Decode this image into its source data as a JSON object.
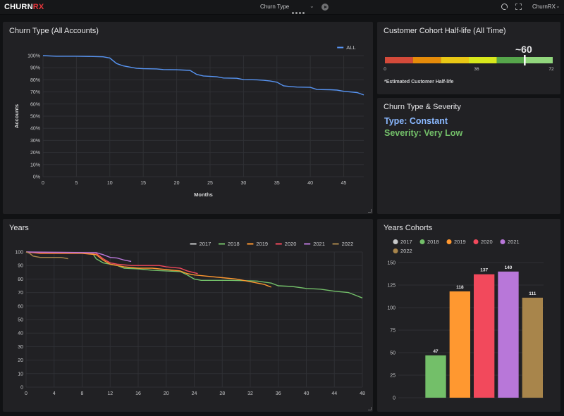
{
  "topbar": {
    "logo_main": "CHURN",
    "logo_accent": "RX",
    "dashboard_title": "Churn Type",
    "user": "ChurnRX"
  },
  "panels": {
    "churn_type_all": "Churn Type (All Accounts)",
    "half_life": "Customer Cohort Half-life (All Time)",
    "type_severity": "Churn Type & Severity",
    "years": "Years",
    "years_cohorts": "Years Cohorts"
  },
  "half_life": {
    "value_label": "~60",
    "value": 60,
    "min": 0,
    "max": 72,
    "min_label": "0",
    "mid_label": "36",
    "max_label": "72",
    "footnote": "*Estimated Customer Half-life",
    "segments": [
      "#d44a3a",
      "#e58b0a",
      "#e9c715",
      "#d8e81c",
      "#56a64b",
      "#91d67d"
    ]
  },
  "severity": {
    "type_text": "Type: Constant",
    "severity_text": "Severity: Very Low",
    "type_color": "#8ab8ff",
    "severity_color": "#73bf69"
  },
  "chart_data": [
    {
      "id": "churn_all",
      "type": "line",
      "title": "Churn Type (All Accounts)",
      "xlabel": "Months",
      "ylabel": "Accounts",
      "xlim": [
        0,
        48
      ],
      "ylim": [
        0,
        100
      ],
      "x_ticks": [
        0,
        5,
        10,
        15,
        20,
        25,
        30,
        35,
        40,
        45
      ],
      "y_ticks": [
        0,
        10,
        20,
        30,
        40,
        50,
        60,
        70,
        80,
        90,
        100
      ],
      "y_tick_suffix": "%",
      "legend": "top-right",
      "series": [
        {
          "name": "ALL",
          "color": "#5794f2",
          "points": [
            [
              0,
              100
            ],
            [
              2,
              99.5
            ],
            [
              5,
              99.5
            ],
            [
              8,
              99.2
            ],
            [
              9,
              99
            ],
            [
              10,
              98
            ],
            [
              11,
              93.5
            ],
            [
              12,
              91.5
            ],
            [
              14,
              89.5
            ],
            [
              15,
              89.2
            ],
            [
              17,
              89
            ],
            [
              18,
              88.5
            ],
            [
              20,
              88.3
            ],
            [
              22,
              87.8
            ],
            [
              23,
              84.5
            ],
            [
              24,
              83.2
            ],
            [
              26,
              82.5
            ],
            [
              27,
              81.5
            ],
            [
              29,
              81.3
            ],
            [
              30,
              80.2
            ],
            [
              32,
              80
            ],
            [
              33,
              79.6
            ],
            [
              34,
              79
            ],
            [
              35,
              78
            ],
            [
              36,
              75
            ],
            [
              37,
              74.5
            ],
            [
              38,
              74
            ],
            [
              40,
              73.8
            ],
            [
              41,
              72
            ],
            [
              43,
              71.8
            ],
            [
              44,
              71.5
            ],
            [
              45,
              70.5
            ],
            [
              47,
              69.5
            ],
            [
              48,
              67.5
            ]
          ]
        }
      ]
    },
    {
      "id": "years",
      "type": "line",
      "title": "Years",
      "xlim": [
        0,
        48
      ],
      "ylim": [
        0,
        100
      ],
      "x_ticks": [
        0,
        4,
        8,
        12,
        16,
        20,
        24,
        28,
        32,
        36,
        40,
        44,
        48
      ],
      "y_ticks": [
        0,
        10,
        20,
        30,
        40,
        50,
        60,
        70,
        80,
        90,
        100
      ],
      "legend": "top-right",
      "series": [
        {
          "name": "2017",
          "color": "#c8c9ca",
          "points": [
            [
              0,
              100
            ]
          ]
        },
        {
          "name": "2018",
          "color": "#73bf69",
          "points": [
            [
              0,
              100
            ],
            [
              4,
              99.5
            ],
            [
              8,
              99.5
            ],
            [
              9.5,
              99
            ],
            [
              10,
              95
            ],
            [
              11,
              92
            ],
            [
              12,
              91
            ],
            [
              13,
              90
            ],
            [
              14,
              88
            ],
            [
              16,
              87.5
            ],
            [
              18,
              86.5
            ],
            [
              20,
              86
            ],
            [
              22,
              85.5
            ],
            [
              23,
              83
            ],
            [
              24,
              80
            ],
            [
              25,
              79
            ],
            [
              27,
              79
            ],
            [
              29,
              79
            ],
            [
              31,
              78.8
            ],
            [
              33,
              78.5
            ],
            [
              35,
              77
            ],
            [
              36,
              75
            ],
            [
              38,
              74.5
            ],
            [
              40,
              73
            ],
            [
              42,
              72.5
            ],
            [
              44,
              71
            ],
            [
              46,
              70
            ],
            [
              47,
              68
            ],
            [
              48,
              66
            ]
          ]
        },
        {
          "name": "2019",
          "color": "#ff9830",
          "points": [
            [
              0,
              100
            ],
            [
              2,
              99
            ],
            [
              4,
              99
            ],
            [
              8,
              99
            ],
            [
              10,
              98
            ],
            [
              11,
              94
            ],
            [
              12,
              91
            ],
            [
              14,
              89
            ],
            [
              16,
              88
            ],
            [
              18,
              88
            ],
            [
              20,
              87
            ],
            [
              22,
              86
            ],
            [
              23,
              84
            ],
            [
              24,
              83
            ],
            [
              26,
              82
            ],
            [
              28,
              81
            ],
            [
              30,
              80
            ],
            [
              32,
              78
            ],
            [
              34,
              76
            ],
            [
              35,
              74
            ]
          ]
        },
        {
          "name": "2020",
          "color": "#f2495c",
          "points": [
            [
              0,
              100
            ],
            [
              2,
              99.5
            ],
            [
              8,
              99.5
            ],
            [
              10,
              99
            ],
            [
              11,
              95
            ],
            [
              12,
              92
            ],
            [
              13,
              91
            ],
            [
              15,
              90
            ],
            [
              17,
              90
            ],
            [
              19,
              90
            ],
            [
              20,
              89
            ],
            [
              22,
              88
            ],
            [
              23,
              86
            ],
            [
              24.5,
              84
            ]
          ]
        },
        {
          "name": "2021",
          "color": "#b877d9",
          "points": [
            [
              0,
              100
            ],
            [
              5,
              99.8
            ],
            [
              8,
              99.6
            ],
            [
              10,
              99.5
            ],
            [
              11,
              98
            ],
            [
              12,
              96
            ],
            [
              13,
              95.5
            ],
            [
              14,
              94
            ],
            [
              15,
              93
            ]
          ]
        },
        {
          "name": "2022",
          "color": "#a8854b",
          "points": [
            [
              0,
              100
            ],
            [
              0.5,
              99
            ],
            [
              1,
              97
            ],
            [
              2,
              96
            ],
            [
              4,
              96
            ],
            [
              5,
              96
            ],
            [
              6,
              95
            ]
          ]
        }
      ]
    },
    {
      "id": "cohorts",
      "type": "bar",
      "title": "Years Cohorts",
      "categories": [
        "2017",
        "2018",
        "2019",
        "2020",
        "2021",
        "2022"
      ],
      "values": [
        0,
        47,
        118,
        137,
        140,
        111
      ],
      "value_labels": [
        "",
        "47",
        "118",
        "137",
        "140",
        "111"
      ],
      "colors": [
        "#c8c9ca",
        "#73bf69",
        "#ff9830",
        "#f2495c",
        "#b877d9",
        "#a8854b"
      ],
      "ylim": [
        0,
        150
      ],
      "y_ticks": [
        0,
        25,
        50,
        75,
        100,
        125,
        150
      ],
      "legend": "top-left"
    }
  ]
}
